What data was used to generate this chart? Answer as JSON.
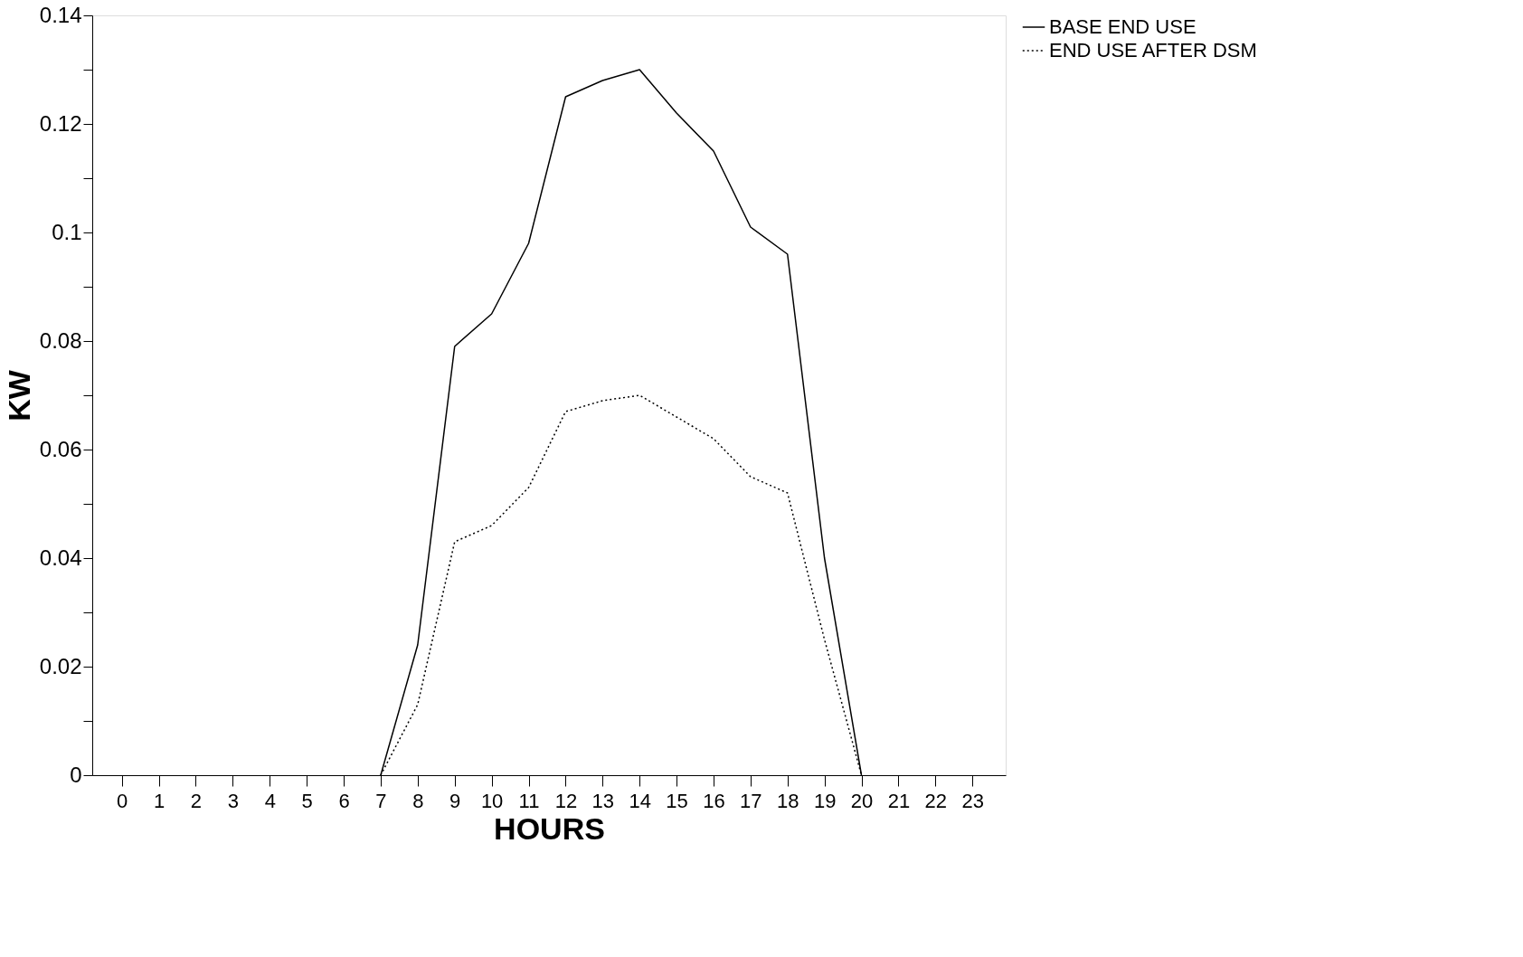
{
  "chart_data": {
    "type": "line",
    "xlabel": "HOURS",
    "ylabel": "KW",
    "xlim": [
      -0.8,
      23.9
    ],
    "xticks": [
      0,
      1,
      2,
      3,
      4,
      5,
      6,
      7,
      8,
      9,
      10,
      11,
      12,
      13,
      14,
      15,
      16,
      17,
      18,
      19,
      20,
      21,
      22,
      23
    ],
    "ylim": [
      0,
      0.14
    ],
    "yticks": [
      0,
      {
        "value": 0.01,
        "label": null
      },
      0.02,
      {
        "value": 0.03,
        "label": null
      },
      0.04,
      {
        "value": 0.05,
        "label": null
      },
      0.06,
      {
        "value": 0.07,
        "label": null
      },
      0.08,
      {
        "value": 0.09,
        "label": null
      },
      0.1,
      {
        "value": 0.11,
        "label": null
      },
      0.12,
      {
        "value": 0.13,
        "label": null
      },
      0.14
    ],
    "grid": false,
    "legend": "top right",
    "marker": "none",
    "series": [
      {
        "name": "BASE END USE",
        "color": "#000000",
        "line_style": "solid",
        "x": [
          7,
          8,
          9,
          10,
          11,
          12,
          13,
          14,
          15,
          16,
          17,
          18,
          19,
          20
        ],
        "values": [
          0,
          0.024,
          0.079,
          0.085,
          0.098,
          0.125,
          0.128,
          0.13,
          0.122,
          0.115,
          0.101,
          0.096,
          0.04,
          0
        ]
      },
      {
        "name": "END USE AFTER DSM",
        "color": "#000000",
        "line_style": "dotted",
        "x": [
          7,
          8,
          9,
          10,
          11,
          12,
          13,
          14,
          15,
          16,
          17,
          18,
          19,
          20
        ],
        "values": [
          0,
          0.013,
          0.043,
          0.046,
          0.053,
          0.067,
          0.069,
          0.07,
          0.066,
          0.062,
          0.055,
          0.052,
          0.025,
          0
        ]
      }
    ]
  }
}
